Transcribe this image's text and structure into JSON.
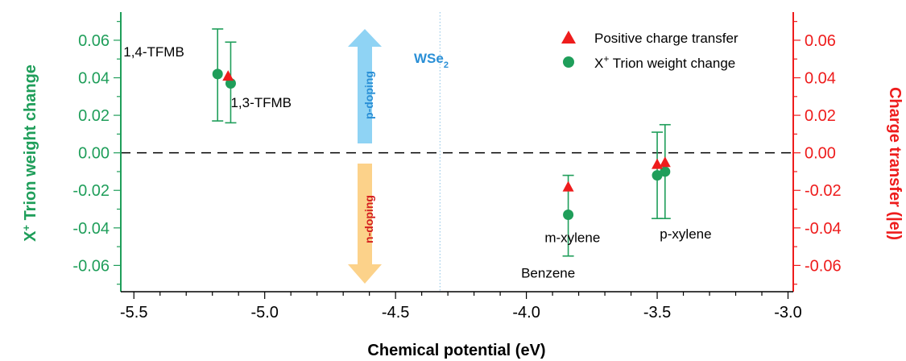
{
  "chart_data": {
    "type": "scatter",
    "xlabel": "Chemical potential (eV)",
    "ylabel_left": "X",
    "ylabel_left_sup": "+",
    "ylabel_left_rest": " Trion weight change",
    "ylabel_right": "Charge transfer (|e|)",
    "xlim": [
      -5.55,
      -2.98
    ],
    "ylim": [
      -0.074,
      0.075
    ],
    "x_ticks": [
      -5.5,
      -5.0,
      -4.5,
      -4.0,
      -3.5,
      -3.0
    ],
    "x_tick_labels": [
      "-5.5",
      "-5.0",
      "-4.5",
      "-4.0",
      "-3.5",
      "-3.0"
    ],
    "y_ticks": [
      0.06,
      0.04,
      0.02,
      0.0,
      -0.02,
      -0.04,
      -0.06
    ],
    "y_tick_labels": [
      "0.06",
      "0.04",
      "0.02",
      "0.00",
      "-0.02",
      "-0.04",
      "-0.06"
    ],
    "right_ticks": [
      0.06,
      0.04,
      0.02,
      0.0,
      -0.02,
      -0.04,
      -0.06
    ],
    "right_tick_labels": [
      "0.06",
      "0.04",
      "0.02",
      "0.00",
      "-0.02",
      "-0.04",
      "-0.06"
    ],
    "colors": {
      "trion": "#1f9e5a",
      "charge": "#ee1c1c",
      "wse2": "#2a8fd6",
      "p_arrow": "#8fd3f4",
      "n_arrow": "#fcd28a",
      "p_text": "#2a8fd6",
      "n_text": "#d42020"
    },
    "legend": {
      "position": "top-right",
      "charge_label": "Positive charge transfer",
      "trion_label": "X",
      "trion_label_sup": "+",
      "trion_label_rest": " Trion weight change"
    },
    "series": [
      {
        "name": "Positive charge transfer",
        "marker": "triangle",
        "points": [
          {
            "x": -5.14,
            "y": 0.041
          },
          {
            "x": -3.84,
            "y": -0.018
          },
          {
            "x": -3.5,
            "y": -0.006
          },
          {
            "x": -3.47,
            "y": -0.005
          }
        ]
      },
      {
        "name": "X+ Trion weight change",
        "marker": "circle",
        "points": [
          {
            "x": -5.18,
            "y": 0.042,
            "err_low": 0.017,
            "err_high": 0.066
          },
          {
            "x": -5.13,
            "y": 0.037,
            "err_low": 0.016,
            "err_high": 0.059
          },
          {
            "x": -3.84,
            "y": -0.033,
            "err_low": -0.055,
            "err_high": -0.012
          },
          {
            "x": -3.5,
            "y": -0.012,
            "err_low": -0.035,
            "err_high": 0.011
          },
          {
            "x": -3.47,
            "y": -0.01,
            "err_low": -0.035,
            "err_high": 0.015
          }
        ]
      }
    ],
    "wse2_x": -4.33,
    "wse2_label": "WSe",
    "wse2_sub": "2",
    "p_label": "p-doping",
    "n_label": "n-doping",
    "annotations": [
      {
        "text": "1,4-TFMB",
        "x": -5.54,
        "y": 0.054
      },
      {
        "text": "1,3-TFMB",
        "x": -5.13,
        "y": 0.027
      },
      {
        "text": "Benzene",
        "x": -4.02,
        "y": -0.064
      },
      {
        "text": "m-xylene",
        "x": -3.93,
        "y": -0.045
      },
      {
        "text": "p-xylene",
        "x": -3.49,
        "y": -0.043
      }
    ]
  }
}
